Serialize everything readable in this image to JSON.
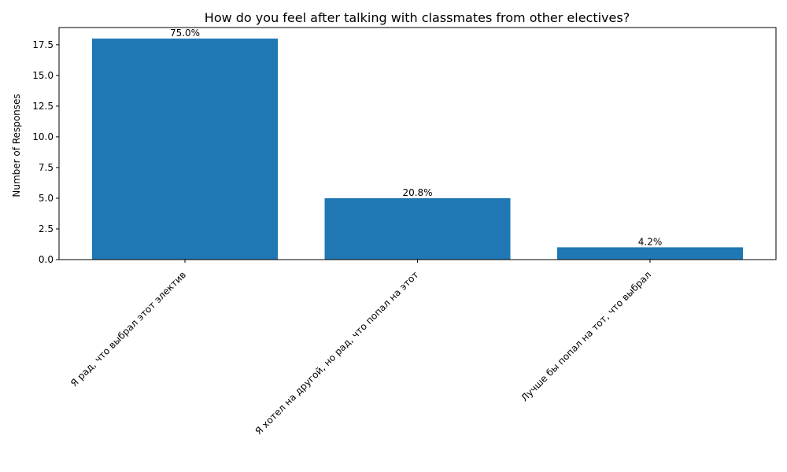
{
  "chart_data": {
    "type": "bar",
    "title": "How do you feel after talking with classmates from other electives?",
    "xlabel": "",
    "ylabel": "Number of Responses",
    "categories": [
      "Я рад, что выбрал этот электив",
      "Я хотел на другой, но рад, что попал на этот",
      "Лучше бы попал на тот, что выбрал"
    ],
    "values": [
      18,
      5,
      1
    ],
    "data_labels": [
      "75.0%",
      "20.8%",
      "4.2%"
    ],
    "ylim": [
      0,
      18.9
    ],
    "yticks": [
      "0.0",
      "2.5",
      "5.0",
      "7.5",
      "10.0",
      "12.5",
      "15.0",
      "17.5"
    ],
    "ytick_values": [
      0,
      2.5,
      5,
      7.5,
      10,
      12.5,
      15,
      17.5
    ],
    "grid": false,
    "bar_color": "#1f77b4"
  }
}
